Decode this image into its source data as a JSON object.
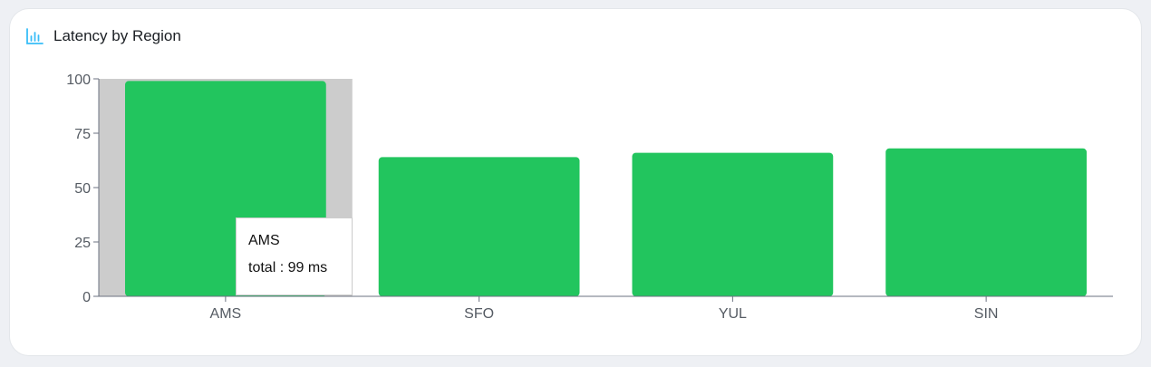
{
  "card": {
    "title": "Latency by Region",
    "icon": "bar-chart-icon"
  },
  "colors": {
    "bar": "#22c55e",
    "highlight": "#cccccc",
    "icon": "#38bdf8",
    "axis": "#6b7280",
    "tick_text": "#555b63"
  },
  "chart_data": {
    "type": "bar",
    "title": "Latency by Region",
    "xlabel": "",
    "ylabel": "",
    "categories": [
      "AMS",
      "SFO",
      "YUL",
      "SIN"
    ],
    "series": [
      {
        "name": "total",
        "values": [
          99,
          64,
          66,
          68
        ]
      }
    ],
    "ylim": [
      0,
      100
    ],
    "yticks": [
      "0",
      "25",
      "50",
      "75",
      "100"
    ],
    "grid": false,
    "legend": "none",
    "highlighted_category": "AMS"
  },
  "tooltip": {
    "title": "AMS",
    "series_label": "total",
    "separator": " : ",
    "value": "99 ms"
  }
}
